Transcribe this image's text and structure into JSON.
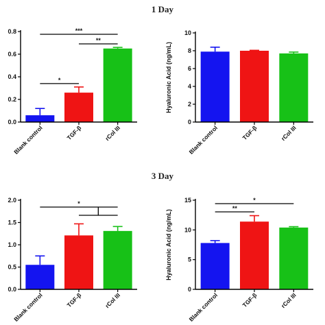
{
  "titles": {
    "day1": "1 Day",
    "day3": "3 Day"
  },
  "colors": {
    "blue": "#1414f0",
    "red": "#ef1414",
    "green": "#17c117",
    "axis": "#000000"
  },
  "chart_data": [
    {
      "type": "bar",
      "title": "",
      "categories": [
        "Blank control",
        "TGF-β",
        "rCol III"
      ],
      "values": [
        0.06,
        0.26,
        0.65
      ],
      "errors": [
        0.06,
        0.05,
        0.01
      ],
      "ylabel": "",
      "ylim": [
        0,
        0.8
      ],
      "yticks": [
        "0.0",
        "0.2",
        "0.4",
        "0.6",
        "0.8"
      ],
      "significance": [
        {
          "from": 0,
          "to": 2,
          "label": "***"
        },
        {
          "from": 1,
          "to": 2,
          "label": "**"
        },
        {
          "from": 0,
          "to": 1,
          "label": "*"
        }
      ]
    },
    {
      "type": "bar",
      "title": "",
      "categories": [
        "Blank control",
        "TGF-β",
        "rCol III"
      ],
      "values": [
        7.9,
        8.0,
        7.7
      ],
      "errors": [
        0.5,
        0.05,
        0.15
      ],
      "ylabel": "Hyaluronic Acid (ng/mL)",
      "ylim": [
        0,
        10
      ],
      "yticks": [
        "0",
        "2",
        "4",
        "6",
        "8",
        "10"
      ],
      "significance": []
    },
    {
      "type": "bar",
      "title": "",
      "categories": [
        "Blank control",
        "TGF-β",
        "rCol III"
      ],
      "values": [
        0.55,
        1.21,
        1.31
      ],
      "errors": [
        0.2,
        0.26,
        0.1
      ],
      "ylabel": "",
      "ylim": [
        0,
        2.0
      ],
      "yticks": [
        "0.0",
        "0.5",
        "1.0",
        "1.5",
        "2.0"
      ],
      "significance": [
        {
          "from": 0,
          "to": 2,
          "label": "*"
        }
      ]
    },
    {
      "type": "bar",
      "title": "",
      "categories": [
        "Blank control",
        "TGF-β",
        "rCol III"
      ],
      "values": [
        7.8,
        11.4,
        10.4
      ],
      "errors": [
        0.4,
        1.0,
        0.15
      ],
      "ylabel": "Hyaluronic Acid  (ng/mL)",
      "ylim": [
        0,
        15
      ],
      "yticks": [
        "0",
        "5",
        "10",
        "15"
      ],
      "significance": [
        {
          "from": 0,
          "to": 2,
          "label": "*"
        },
        {
          "from": 0,
          "to": 1,
          "label": "**"
        }
      ]
    }
  ]
}
